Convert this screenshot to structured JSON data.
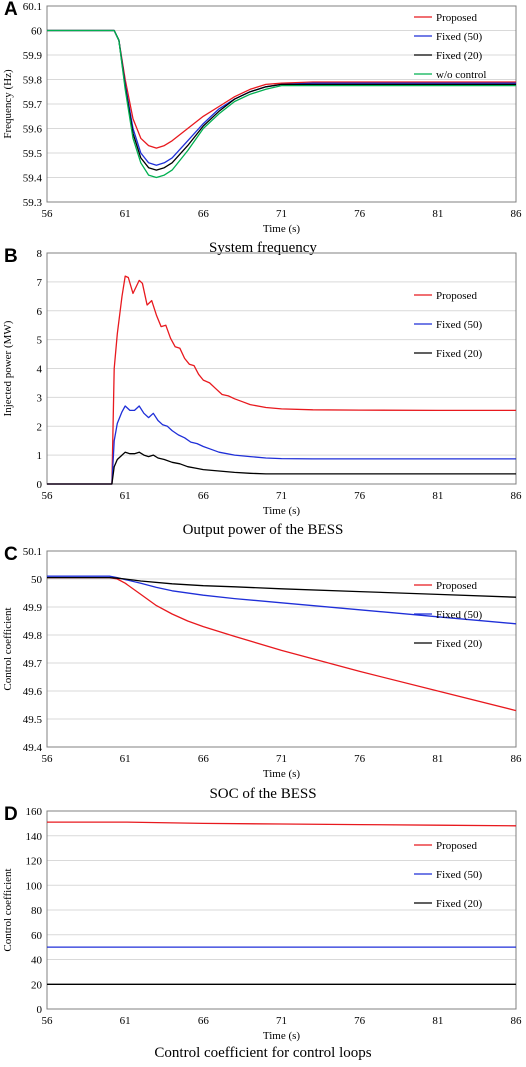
{
  "chart_data": [
    {
      "type": "line",
      "panel_label": "A",
      "caption": "System frequency",
      "xlabel": "Time (s)",
      "ylabel": "Frequency (Hz)",
      "xlim": [
        56,
        86
      ],
      "ylim": [
        59.3,
        60.1
      ],
      "x_ticks": [
        "56",
        "61",
        "66",
        "71",
        "76",
        "81",
        "86"
      ],
      "y_ticks": [
        "59.3",
        "59.4",
        "59.5",
        "59.6",
        "59.7",
        "59.8",
        "59.9",
        "60",
        "60.1"
      ],
      "legend_position": "top-right",
      "series": [
        {
          "name": "Proposed",
          "color": "#e8191e",
          "x": [
            56,
            60,
            60.3,
            60.6,
            61,
            61.5,
            62,
            62.5,
            63,
            63.5,
            64,
            65,
            66,
            67,
            68,
            69,
            70,
            71,
            73,
            76,
            81,
            86
          ],
          "y": [
            60,
            60,
            60,
            59.96,
            59.8,
            59.64,
            59.56,
            59.53,
            59.52,
            59.53,
            59.55,
            59.6,
            59.65,
            59.69,
            59.73,
            59.76,
            59.78,
            59.785,
            59.79,
            59.79,
            59.79,
            59.79
          ]
        },
        {
          "name": "Fixed (50)",
          "color": "#1f2fd8",
          "x": [
            56,
            60,
            60.3,
            60.6,
            61,
            61.5,
            62,
            62.5,
            63,
            63.5,
            64,
            65,
            66,
            67,
            68,
            69,
            70,
            71,
            73,
            76,
            81,
            86
          ],
          "y": [
            60,
            60,
            60,
            59.96,
            59.78,
            59.6,
            59.5,
            59.46,
            59.45,
            59.46,
            59.48,
            59.55,
            59.62,
            59.68,
            59.72,
            59.75,
            59.77,
            59.78,
            59.785,
            59.785,
            59.785,
            59.785
          ]
        },
        {
          "name": "Fixed (20)",
          "color": "#000000",
          "x": [
            56,
            60,
            60.3,
            60.6,
            61,
            61.5,
            62,
            62.5,
            63,
            63.5,
            64,
            65,
            66,
            67,
            68,
            69,
            70,
            71,
            73,
            76,
            81,
            86
          ],
          "y": [
            60,
            60,
            60,
            59.96,
            59.77,
            59.58,
            59.48,
            59.44,
            59.43,
            59.44,
            59.46,
            59.53,
            59.61,
            59.67,
            59.72,
            59.75,
            59.77,
            59.78,
            59.78,
            59.78,
            59.78,
            59.78
          ]
        },
        {
          "name": "w/o control",
          "color": "#00b050",
          "x": [
            56,
            60,
            60.3,
            60.6,
            61,
            61.5,
            62,
            62.5,
            63,
            63.5,
            64,
            65,
            66,
            67,
            68,
            69,
            70,
            71,
            73,
            76,
            81,
            86
          ],
          "y": [
            60,
            60,
            60,
            59.96,
            59.76,
            59.56,
            59.46,
            59.41,
            59.4,
            59.41,
            59.43,
            59.51,
            59.6,
            59.66,
            59.71,
            59.74,
            59.76,
            59.775,
            59.775,
            59.775,
            59.775,
            59.775
          ]
        }
      ]
    },
    {
      "type": "line",
      "panel_label": "B",
      "caption": "Output power of the BESS",
      "xlabel": "Time (s)",
      "ylabel": "Injected power (MW)",
      "xlim": [
        56,
        86
      ],
      "ylim": [
        0,
        8
      ],
      "x_ticks": [
        "56",
        "61",
        "66",
        "71",
        "76",
        "81",
        "86"
      ],
      "y_ticks": [
        "0",
        "1",
        "2",
        "3",
        "4",
        "5",
        "6",
        "7",
        "8"
      ],
      "legend_position": "top-right",
      "series": [
        {
          "name": "Proposed",
          "color": "#e8191e",
          "x": [
            56,
            60,
            60.15,
            60.3,
            60.5,
            60.8,
            61.0,
            61.2,
            61.5,
            61.9,
            62.1,
            62.4,
            62.7,
            63.0,
            63.3,
            63.6,
            63.9,
            64.2,
            64.5,
            64.8,
            65.1,
            65.4,
            65.7,
            66.0,
            66.4,
            66.8,
            67.2,
            67.6,
            68.0,
            68.5,
            69,
            70,
            71,
            73,
            76,
            81,
            86
          ],
          "y": [
            0,
            0,
            0,
            4.0,
            5.2,
            6.5,
            7.2,
            7.15,
            6.6,
            7.05,
            6.95,
            6.2,
            6.35,
            5.85,
            5.45,
            5.5,
            5.05,
            4.75,
            4.7,
            4.35,
            4.15,
            4.1,
            3.8,
            3.6,
            3.5,
            3.3,
            3.1,
            3.05,
            2.95,
            2.85,
            2.75,
            2.65,
            2.6,
            2.57,
            2.56,
            2.55,
            2.55
          ]
        },
        {
          "name": "Fixed (50)",
          "color": "#1f2fd8",
          "x": [
            56,
            60,
            60.15,
            60.3,
            60.5,
            60.8,
            61.0,
            61.3,
            61.6,
            61.9,
            62.2,
            62.5,
            62.8,
            63.1,
            63.4,
            63.7,
            64.0,
            64.4,
            64.8,
            65.2,
            65.6,
            66.0,
            66.5,
            67,
            68,
            69,
            70,
            71,
            73,
            76,
            81,
            86
          ],
          "y": [
            0,
            0,
            0,
            1.5,
            2.1,
            2.5,
            2.7,
            2.55,
            2.55,
            2.7,
            2.45,
            2.3,
            2.45,
            2.2,
            2.05,
            2.0,
            1.85,
            1.7,
            1.6,
            1.45,
            1.4,
            1.3,
            1.2,
            1.1,
            1.0,
            0.95,
            0.9,
            0.88,
            0.87,
            0.87,
            0.87,
            0.87
          ]
        },
        {
          "name": "Fixed (20)",
          "color": "#000000",
          "x": [
            56,
            60,
            60.15,
            60.3,
            60.5,
            60.8,
            61.0,
            61.3,
            61.6,
            61.9,
            62.2,
            62.5,
            62.8,
            63.1,
            63.5,
            64.0,
            64.5,
            65.0,
            65.5,
            66.0,
            67,
            68,
            69,
            70,
            71,
            73,
            76,
            81,
            86
          ],
          "y": [
            0,
            0,
            0,
            0.6,
            0.85,
            1.0,
            1.1,
            1.05,
            1.05,
            1.1,
            1.0,
            0.95,
            1.0,
            0.9,
            0.85,
            0.75,
            0.7,
            0.6,
            0.55,
            0.5,
            0.45,
            0.4,
            0.37,
            0.35,
            0.35,
            0.35,
            0.35,
            0.35,
            0.35
          ]
        }
      ]
    },
    {
      "type": "line",
      "panel_label": "C",
      "caption": "SOC of the BESS",
      "xlabel": "Time (s)",
      "ylabel": "Control coefficient",
      "xlim": [
        56,
        86
      ],
      "ylim": [
        49.4,
        50.1
      ],
      "x_ticks": [
        "56",
        "61",
        "66",
        "71",
        "76",
        "81",
        "86"
      ],
      "y_ticks": [
        "49.4",
        "49.5",
        "49.6",
        "49.7",
        "49.8",
        "49.9",
        "50",
        "50.1"
      ],
      "legend_position": "right",
      "series": [
        {
          "name": "Proposed",
          "color": "#e8191e",
          "x": [
            56,
            60,
            60.5,
            61,
            62,
            63,
            64,
            65,
            66,
            68,
            71,
            76,
            81,
            86
          ],
          "y": [
            50.005,
            50.005,
            50.0,
            49.985,
            49.945,
            49.905,
            49.875,
            49.85,
            49.83,
            49.795,
            49.745,
            49.67,
            49.6,
            49.53
          ]
        },
        {
          "name": "Fixed (50)",
          "color": "#1f2fd8",
          "x": [
            56,
            60,
            60.5,
            61,
            62,
            63,
            64,
            66,
            68,
            71,
            76,
            81,
            86
          ],
          "y": [
            50.01,
            50.01,
            50.005,
            49.998,
            49.985,
            49.97,
            49.958,
            49.942,
            49.93,
            49.915,
            49.89,
            49.865,
            49.84
          ]
        },
        {
          "name": "Fixed (20)",
          "color": "#000000",
          "x": [
            56,
            60,
            60.5,
            61,
            62,
            64,
            66,
            68,
            71,
            76,
            81,
            86
          ],
          "y": [
            50.005,
            50.005,
            50.003,
            50.0,
            49.993,
            49.983,
            49.976,
            49.972,
            49.965,
            49.955,
            49.945,
            49.935
          ]
        }
      ]
    },
    {
      "type": "line",
      "panel_label": "D",
      "caption": "Control coefficient for control loops",
      "xlabel": "Time (s)",
      "ylabel": "Control coefficient",
      "xlim": [
        56,
        86
      ],
      "ylim": [
        0,
        160
      ],
      "x_ticks": [
        "56",
        "61",
        "66",
        "71",
        "76",
        "81",
        "86"
      ],
      "y_ticks": [
        "0",
        "20",
        "40",
        "60",
        "80",
        "100",
        "120",
        "140",
        "160"
      ],
      "legend_position": "right",
      "series": [
        {
          "name": "Proposed",
          "color": "#e8191e",
          "x": [
            56,
            61,
            66,
            71,
            76,
            81,
            86
          ],
          "y": [
            151,
            151,
            150,
            149.5,
            149,
            148.5,
            148
          ]
        },
        {
          "name": "Fixed (50)",
          "color": "#1f2fd8",
          "x": [
            56,
            86
          ],
          "y": [
            50,
            50
          ]
        },
        {
          "name": "Fixed (20)",
          "color": "#000000",
          "x": [
            56,
            86
          ],
          "y": [
            20,
            20
          ]
        }
      ]
    }
  ]
}
